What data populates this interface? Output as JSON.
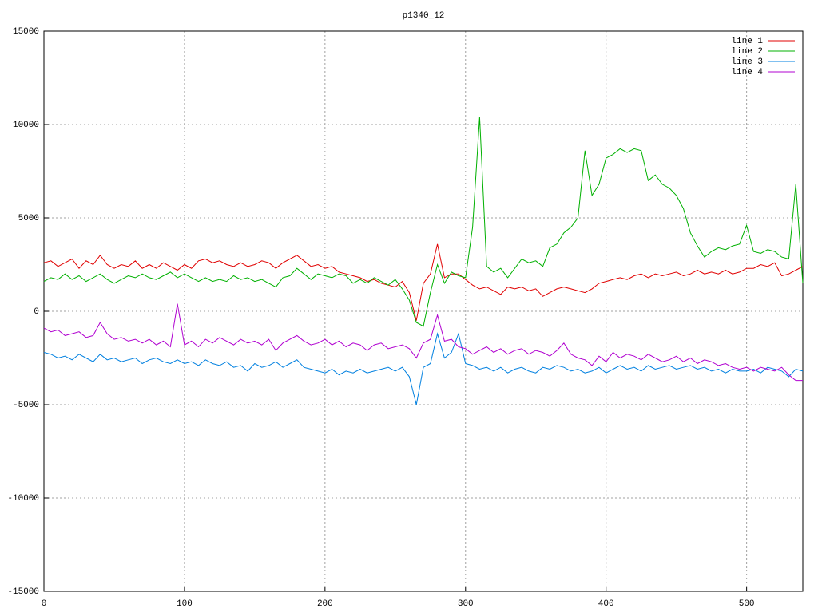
{
  "chart_data": {
    "type": "line",
    "title": "p1340_12",
    "x": [
      0,
      5,
      10,
      15,
      20,
      25,
      30,
      35,
      40,
      45,
      50,
      55,
      60,
      65,
      70,
      75,
      80,
      85,
      90,
      95,
      100,
      105,
      110,
      115,
      120,
      125,
      130,
      135,
      140,
      145,
      150,
      155,
      160,
      165,
      170,
      175,
      180,
      185,
      190,
      195,
      200,
      205,
      210,
      215,
      220,
      225,
      230,
      235,
      240,
      245,
      250,
      255,
      260,
      265,
      270,
      275,
      280,
      285,
      290,
      295,
      300,
      305,
      310,
      315,
      320,
      325,
      330,
      335,
      340,
      345,
      350,
      355,
      360,
      365,
      370,
      375,
      380,
      385,
      390,
      395,
      400,
      405,
      410,
      415,
      420,
      425,
      430,
      435,
      440,
      445,
      450,
      455,
      460,
      465,
      470,
      475,
      480,
      485,
      490,
      495,
      500,
      505,
      510,
      515,
      520,
      525,
      530,
      535,
      540
    ],
    "series": [
      {
        "name": "line 1",
        "color": "#e00000",
        "values": [
          2600,
          2700,
          2400,
          2600,
          2800,
          2300,
          2700,
          2500,
          3000,
          2500,
          2300,
          2500,
          2400,
          2700,
          2300,
          2500,
          2300,
          2600,
          2400,
          2200,
          2500,
          2300,
          2700,
          2800,
          2600,
          2700,
          2500,
          2400,
          2600,
          2400,
          2500,
          2700,
          2600,
          2300,
          2600,
          2800,
          3000,
          2700,
          2400,
          2500,
          2300,
          2400,
          2100,
          2000,
          1900,
          1800,
          1600,
          1700,
          1500,
          1400,
          1300,
          1600,
          1000,
          -500,
          1500,
          2000,
          3600,
          1800,
          2000,
          2000,
          1700,
          1400,
          1200,
          1300,
          1100,
          900,
          1300,
          1200,
          1300,
          1100,
          1200,
          800,
          1000,
          1200,
          1300,
          1200,
          1100,
          1000,
          1200,
          1500,
          1600,
          1700,
          1800,
          1700,
          1900,
          2000,
          1800,
          2000,
          1900,
          2000,
          2100,
          1900,
          2000,
          2200,
          2000,
          2100,
          2000,
          2200,
          2000,
          2100,
          2300,
          2300,
          2500,
          2400,
          2600,
          1900,
          2000,
          2200,
          2400
        ]
      },
      {
        "name": "line 2",
        "color": "#00b000",
        "values": [
          1600,
          1800,
          1700,
          2000,
          1700,
          1900,
          1600,
          1800,
          2000,
          1700,
          1500,
          1700,
          1900,
          1800,
          2000,
          1800,
          1700,
          1900,
          2100,
          1800,
          2000,
          1800,
          1600,
          1800,
          1600,
          1700,
          1600,
          1900,
          1700,
          1800,
          1600,
          1700,
          1500,
          1300,
          1800,
          1900,
          2300,
          2000,
          1700,
          2000,
          1900,
          1800,
          2000,
          1900,
          1500,
          1700,
          1500,
          1800,
          1600,
          1400,
          1700,
          1200,
          600,
          -600,
          -800,
          1000,
          2500,
          1500,
          2100,
          1900,
          1800,
          4500,
          10400,
          2400,
          2100,
          2300,
          1800,
          2300,
          2800,
          2600,
          2700,
          2400,
          3400,
          3600,
          4200,
          4500,
          5000,
          8600,
          6200,
          6800,
          8200,
          8400,
          8700,
          8500,
          8700,
          8600,
          7000,
          7300,
          6800,
          6600,
          6200,
          5500,
          4200,
          3500,
          2900,
          3200,
          3400,
          3300,
          3500,
          3600,
          4600,
          3200,
          3100,
          3300,
          3200,
          2900,
          2800,
          6800,
          1500
        ]
      },
      {
        "name": "line 3",
        "color": "#0080e0",
        "values": [
          -2200,
          -2300,
          -2500,
          -2400,
          -2600,
          -2300,
          -2500,
          -2700,
          -2300,
          -2600,
          -2500,
          -2700,
          -2600,
          -2500,
          -2800,
          -2600,
          -2500,
          -2700,
          -2800,
          -2600,
          -2800,
          -2700,
          -2900,
          -2600,
          -2800,
          -2900,
          -2700,
          -3000,
          -2900,
          -3200,
          -2800,
          -3000,
          -2900,
          -2700,
          -3000,
          -2800,
          -2600,
          -3000,
          -3100,
          -3200,
          -3300,
          -3100,
          -3400,
          -3200,
          -3300,
          -3100,
          -3300,
          -3200,
          -3100,
          -3000,
          -3200,
          -3000,
          -3500,
          -5000,
          -3000,
          -2800,
          -1200,
          -2500,
          -2200,
          -1200,
          -2800,
          -2900,
          -3100,
          -3000,
          -3200,
          -3000,
          -3300,
          -3100,
          -3000,
          -3200,
          -3300,
          -3000,
          -3100,
          -2900,
          -3000,
          -3200,
          -3100,
          -3300,
          -3200,
          -3000,
          -3300,
          -3100,
          -2900,
          -3100,
          -3000,
          -3200,
          -2900,
          -3100,
          -3000,
          -2900,
          -3100,
          -3000,
          -2900,
          -3100,
          -3000,
          -3200,
          -3100,
          -3300,
          -3100,
          -3200,
          -3200,
          -3100,
          -3300,
          -3000,
          -3100,
          -3200,
          -3500,
          -3100,
          -3200
        ]
      },
      {
        "name": "line 4",
        "color": "#b000d0",
        "values": [
          -900,
          -1100,
          -1000,
          -1300,
          -1200,
          -1100,
          -1400,
          -1300,
          -600,
          -1200,
          -1500,
          -1400,
          -1600,
          -1500,
          -1700,
          -1500,
          -1800,
          -1600,
          -1900,
          400,
          -1800,
          -1600,
          -1900,
          -1500,
          -1700,
          -1400,
          -1600,
          -1800,
          -1500,
          -1700,
          -1600,
          -1800,
          -1500,
          -2100,
          -1700,
          -1500,
          -1300,
          -1600,
          -1800,
          -1700,
          -1500,
          -1800,
          -1600,
          -1900,
          -1700,
          -1800,
          -2100,
          -1800,
          -1700,
          -2000,
          -1900,
          -1800,
          -2000,
          -2500,
          -1700,
          -1500,
          -200,
          -1600,
          -1500,
          -1900,
          -2000,
          -2300,
          -2100,
          -1900,
          -2200,
          -2000,
          -2300,
          -2100,
          -2000,
          -2300,
          -2100,
          -2200,
          -2400,
          -2100,
          -1700,
          -2300,
          -2500,
          -2600,
          -2900,
          -2400,
          -2700,
          -2200,
          -2500,
          -2300,
          -2400,
          -2600,
          -2300,
          -2500,
          -2700,
          -2600,
          -2400,
          -2700,
          -2500,
          -2800,
          -2600,
          -2700,
          -2900,
          -2800,
          -3000,
          -3100,
          -3000,
          -3200,
          -3000,
          -3100,
          -3200,
          -3000,
          -3400,
          -3700,
          -3700
        ]
      }
    ],
    "xlim": [
      0,
      540
    ],
    "xticks": [
      0,
      100,
      200,
      300,
      400,
      500
    ],
    "ylim": [
      -15000,
      15000
    ],
    "yticks": [
      -15000,
      -10000,
      -5000,
      0,
      5000,
      10000,
      15000
    ],
    "grid": true,
    "legend": "upper right"
  }
}
